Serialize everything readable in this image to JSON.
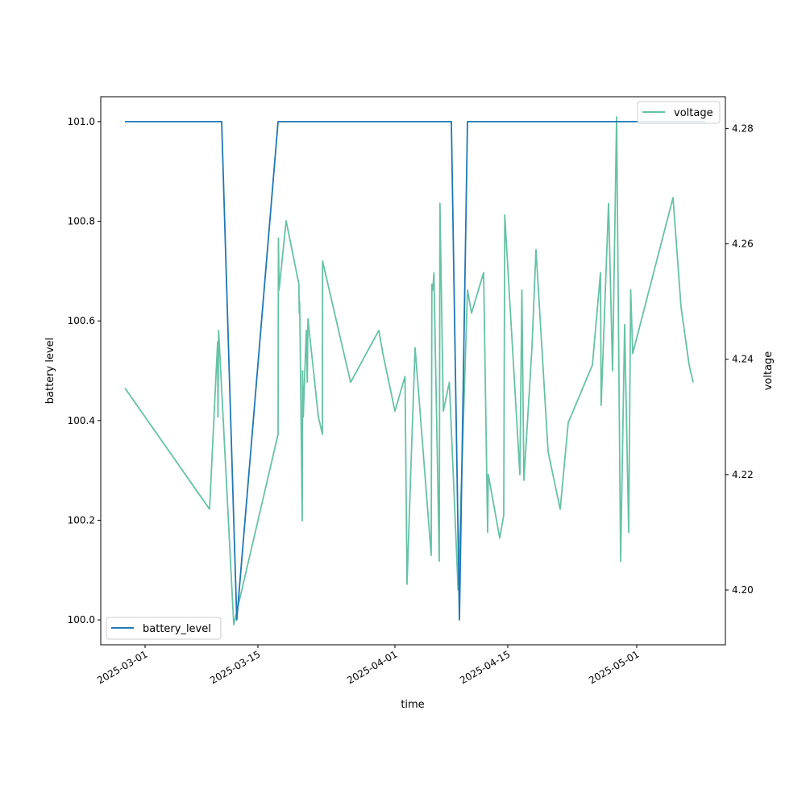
{
  "chart_data": {
    "type": "line",
    "xlabel": "time",
    "ylabel_left": "battery level",
    "ylabel_right": "voltage",
    "xlim": [
      "2025-02-23T12:00",
      "2025-05-12"
    ],
    "ylim_left": [
      99.95,
      101.05
    ],
    "ylim_right": [
      4.1905,
      4.2855
    ],
    "x_ticks": [
      "2025-03-01",
      "2025-03-15",
      "2025-04-01",
      "2025-04-15",
      "2025-05-01"
    ],
    "y_ticks_left": [
      "100.0",
      "100.2",
      "100.4",
      "100.6",
      "100.8",
      "101.0"
    ],
    "y_ticks_right": [
      "4.20",
      "4.22",
      "4.24",
      "4.26",
      "4.28"
    ],
    "grid": false,
    "series": [
      {
        "name": "battery_level",
        "axis": "left",
        "color": "#1f77b4",
        "legend_position": "lower left",
        "points": [
          [
            "2025-02-26T12:00",
            101.0
          ],
          [
            "2025-03-10T12:00",
            101.0
          ],
          [
            "2025-03-12T09:00",
            100.0
          ],
          [
            "2025-03-17T12:00",
            101.0
          ],
          [
            "2025-04-08T00:00",
            101.0
          ],
          [
            "2025-04-09T00:00",
            100.0
          ],
          [
            "2025-04-10T00:00",
            101.0
          ],
          [
            "2025-05-09T12:00",
            101.0
          ]
        ]
      },
      {
        "name": "voltage",
        "axis": "right",
        "color": "#66c2a5",
        "legend_position": "upper right",
        "points": [
          [
            "2025-02-26T12:00",
            4.235
          ],
          [
            "2025-03-09T00:00",
            4.214
          ],
          [
            "2025-03-10T00:00",
            4.243
          ],
          [
            "2025-03-10T01:00",
            4.23
          ],
          [
            "2025-03-10T03:00",
            4.245
          ],
          [
            "2025-03-12T00:00",
            4.194
          ],
          [
            "2025-03-17T12:00",
            4.227
          ],
          [
            "2025-03-17T13:00",
            4.261
          ],
          [
            "2025-03-17T15:00",
            4.252
          ],
          [
            "2025-03-18T12:00",
            4.264
          ],
          [
            "2025-03-20T02:00",
            4.253
          ],
          [
            "2025-03-20T03:00",
            4.248
          ],
          [
            "2025-03-20T04:00",
            4.25
          ],
          [
            "2025-03-20T05:00",
            4.247
          ],
          [
            "2025-03-20T12:00",
            4.212
          ],
          [
            "2025-03-20T13:00",
            4.238
          ],
          [
            "2025-03-20T15:00",
            4.23
          ],
          [
            "2025-03-21T00:00",
            4.245
          ],
          [
            "2025-03-21T03:00",
            4.236
          ],
          [
            "2025-03-21T05:00",
            4.247
          ],
          [
            "2025-03-22T12:00",
            4.23
          ],
          [
            "2025-03-23T00:00",
            4.227
          ],
          [
            "2025-03-23T00:30",
            4.257
          ],
          [
            "2025-03-26T12:00",
            4.236
          ],
          [
            "2025-03-30T00:00",
            4.245
          ],
          [
            "2025-03-30T12:00",
            4.241
          ],
          [
            "2025-04-01T00:00",
            4.231
          ],
          [
            "2025-04-02T06:00",
            4.237
          ],
          [
            "2025-04-02T12:00",
            4.201
          ],
          [
            "2025-04-03T00:00",
            4.222
          ],
          [
            "2025-04-03T12:00",
            4.242
          ],
          [
            "2025-04-05T12:00",
            4.206
          ],
          [
            "2025-04-05T14:00",
            4.253
          ],
          [
            "2025-04-05T17:00",
            4.252
          ],
          [
            "2025-04-05T20:00",
            4.255
          ],
          [
            "2025-04-06T12:00",
            4.205
          ],
          [
            "2025-04-06T14:00",
            4.267
          ],
          [
            "2025-04-07T00:00",
            4.231
          ],
          [
            "2025-04-07T18:00",
            4.236
          ],
          [
            "2025-04-08T18:00",
            4.203
          ],
          [
            "2025-04-08T20:00",
            4.2
          ],
          [
            "2025-04-10T00:00",
            4.252
          ],
          [
            "2025-04-10T12:00",
            4.248
          ],
          [
            "2025-04-12T00:00",
            4.255
          ],
          [
            "2025-04-12T12:00",
            4.21
          ],
          [
            "2025-04-12T14:00",
            4.22
          ],
          [
            "2025-04-14T00:00",
            4.209
          ],
          [
            "2025-04-14T12:00",
            4.213
          ],
          [
            "2025-04-14T15:00",
            4.265
          ],
          [
            "2025-04-16T12:00",
            4.22
          ],
          [
            "2025-04-16T18:00",
            4.252
          ],
          [
            "2025-04-17T00:00",
            4.219
          ],
          [
            "2025-04-18T00:00",
            4.242
          ],
          [
            "2025-04-18T12:00",
            4.259
          ],
          [
            "2025-04-20T00:00",
            4.224
          ],
          [
            "2025-04-21T12:00",
            4.214
          ],
          [
            "2025-04-22T12:00",
            4.229
          ],
          [
            "2025-04-25T12:00",
            4.239
          ],
          [
            "2025-04-26T12:00",
            4.255
          ],
          [
            "2025-04-26T14:00",
            4.232
          ],
          [
            "2025-04-27T12:00",
            4.267
          ],
          [
            "2025-04-28T00:00",
            4.238
          ],
          [
            "2025-04-28T12:00",
            4.282
          ],
          [
            "2025-04-29T00:00",
            4.205
          ],
          [
            "2025-04-29T12:00",
            4.246
          ],
          [
            "2025-04-30T00:00",
            4.21
          ],
          [
            "2025-04-30T06:00",
            4.252
          ],
          [
            "2025-04-30T12:00",
            4.241
          ],
          [
            "2025-05-05T12:00",
            4.268
          ],
          [
            "2025-05-06T12:00",
            4.249
          ],
          [
            "2025-05-07T12:00",
            4.239
          ],
          [
            "2025-05-08T00:00",
            4.236
          ]
        ]
      }
    ]
  }
}
